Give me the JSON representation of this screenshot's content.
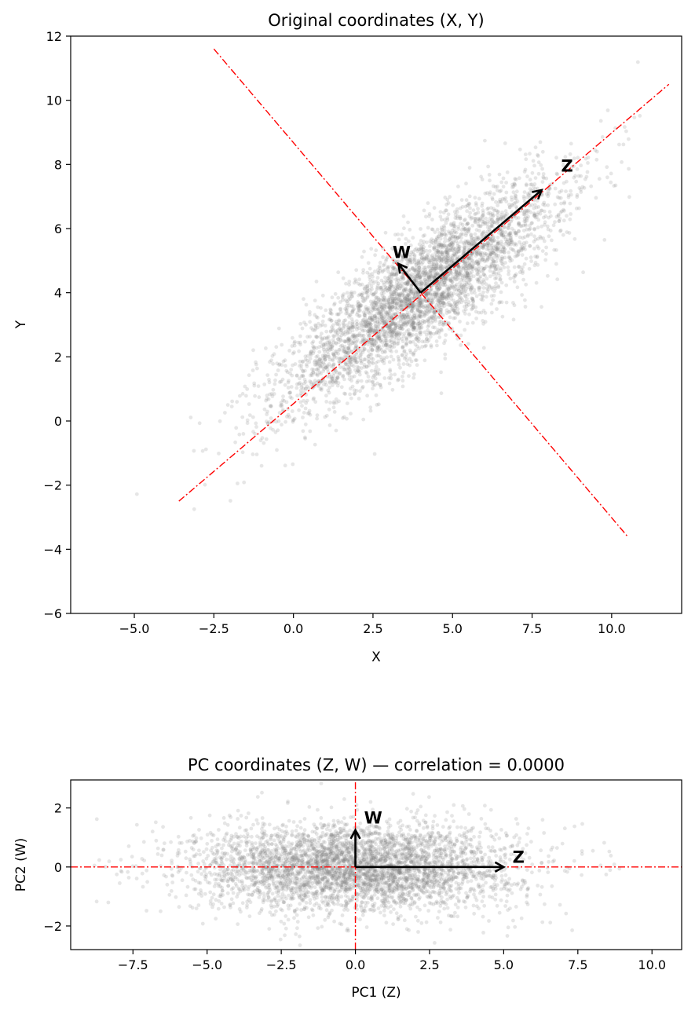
{
  "chart_data": [
    {
      "type": "scatter",
      "title": "Original coordinates (X, Y)",
      "xlabel": "X",
      "ylabel": "Y",
      "xlim": [
        -7.0,
        12.2
      ],
      "ylim": [
        -6,
        12
      ],
      "xticks": [
        -5.0,
        -2.5,
        0.0,
        2.5,
        5.0,
        7.5,
        10.0
      ],
      "yticks": [
        -6,
        -4,
        -2,
        0,
        2,
        4,
        6,
        8,
        10,
        12
      ],
      "xtick_labels": [
        "−5.0",
        "−2.5",
        "0.0",
        "2.5",
        "5.0",
        "7.5",
        "10.0"
      ],
      "ytick_labels": [
        "−6",
        "−4",
        "−2",
        "0",
        "2",
        "4",
        "6",
        "8",
        "10",
        "12"
      ],
      "grid": false,
      "scatter_color": "#808080",
      "scatter_summary": {
        "n_points": 4000,
        "center": [
          4.0,
          4.0
        ],
        "pc1_direction_deg": 37,
        "pc1_std": 2.7,
        "pc2_std": 0.75
      },
      "guide_lines": [
        {
          "style": "dash-dot",
          "color": "#ff0000",
          "from": [
            -3.6,
            -2.5
          ],
          "to": [
            11.8,
            10.5
          ]
        },
        {
          "style": "dash-dot",
          "color": "#ff0000",
          "from": [
            -2.5,
            11.6
          ],
          "to": [
            10.5,
            -3.6
          ]
        }
      ],
      "arrows": [
        {
          "label": "Z",
          "from": [
            4.0,
            4.0
          ],
          "to": [
            7.8,
            7.2
          ],
          "label_at": [
            8.6,
            7.95
          ]
        },
        {
          "label": "W",
          "from": [
            4.0,
            4.0
          ],
          "to": [
            3.3,
            4.9
          ],
          "label_at": [
            3.4,
            5.25
          ]
        }
      ]
    },
    {
      "type": "scatter",
      "title": "PC coordinates (Z, W)  —  correlation = 0.0000",
      "xlabel": "PC1 (Z)",
      "ylabel": "PC2 (W)",
      "xlim": [
        -9.6,
        11.0
      ],
      "ylim": [
        -2.8,
        2.95
      ],
      "xticks": [
        -7.5,
        -5.0,
        -2.5,
        0.0,
        2.5,
        5.0,
        7.5,
        10.0
      ],
      "yticks": [
        -2,
        0,
        2
      ],
      "xtick_labels": [
        "−7.5",
        "−5.0",
        "−2.5",
        "0.0",
        "2.5",
        "5.0",
        "7.5",
        "10.0"
      ],
      "ytick_labels": [
        "−2",
        "0",
        "2"
      ],
      "grid": false,
      "scatter_color": "#808080",
      "scatter_summary": {
        "n_points": 4000,
        "center": [
          0,
          0
        ],
        "pc1_std": 2.7,
        "pc2_std": 0.75
      },
      "guide_lines": [
        {
          "style": "dash-dot",
          "color": "#ff0000",
          "from": [
            -9.6,
            0
          ],
          "to": [
            11.0,
            0
          ]
        },
        {
          "style": "dash-dot",
          "color": "#ff0000",
          "from": [
            0,
            -2.8
          ],
          "to": [
            0,
            2.95
          ]
        }
      ],
      "arrows": [
        {
          "label": "Z",
          "from": [
            0,
            0
          ],
          "to": [
            5.0,
            0
          ],
          "label_at": [
            5.5,
            0.33
          ]
        },
        {
          "label": "W",
          "from": [
            0,
            0
          ],
          "to": [
            0,
            1.25
          ],
          "label_at": [
            0.6,
            1.66
          ]
        }
      ]
    }
  ]
}
